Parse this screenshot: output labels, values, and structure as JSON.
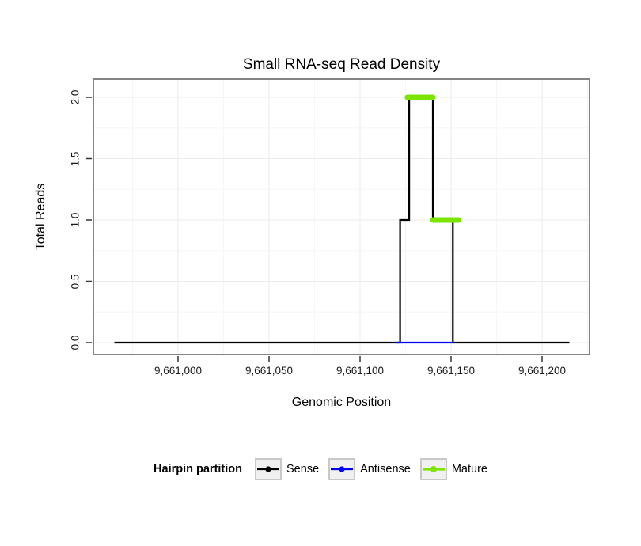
{
  "title": "Small RNA-seq Read Density",
  "axes": {
    "x_label": "Genomic Position",
    "y_label": "Total Reads",
    "x_ticks": [
      {
        "value": 9661000,
        "label": "9,661,000"
      },
      {
        "value": 9661050,
        "label": "9,661,050"
      },
      {
        "value": 9661100,
        "label": "9,661,100"
      },
      {
        "value": 9661150,
        "label": "9,661,150"
      },
      {
        "value": 9661200,
        "label": "9,661,200"
      }
    ],
    "y_ticks": [
      {
        "value": 2.0,
        "label": "2.0"
      },
      {
        "value": 1.5,
        "label": "1.5"
      },
      {
        "value": 1.0,
        "label": "1.0"
      },
      {
        "value": 0.5,
        "label": "0.5"
      },
      {
        "value": 0.0,
        "label": "0.0"
      }
    ]
  },
  "legend": {
    "title": "Hairpin partition",
    "items": [
      {
        "label": "Sense",
        "color": "#000000"
      },
      {
        "label": "Antisense",
        "color": "#0000EE"
      },
      {
        "label": "Mature",
        "color": "#7CE500"
      }
    ]
  },
  "style": {
    "panel_border": "#848484",
    "grid_major": "#ebebeb",
    "grid_minor": "#f6f6f6",
    "tick_color": "#333333"
  },
  "chart_data": {
    "type": "line",
    "title": "Small RNA-seq Read Density",
    "xlabel": "Genomic Position",
    "ylabel": "Total Reads",
    "xlim": [
      9660953,
      9661226
    ],
    "ylim": [
      -0.1,
      2.15
    ],
    "grid": true,
    "legend_position": "bottom",
    "series": [
      {
        "name": "Sense",
        "draw": "step",
        "color": "#000000",
        "width": 2.2,
        "points": [
          [
            9660965,
            0
          ],
          [
            9661122,
            0
          ],
          [
            9661122,
            1
          ],
          [
            9661127,
            1
          ],
          [
            9661127,
            2
          ],
          [
            9661140,
            2
          ],
          [
            9661140,
            1
          ],
          [
            9661151,
            1
          ],
          [
            9661151,
            0
          ],
          [
            9661215,
            0
          ]
        ]
      },
      {
        "name": "Antisense",
        "draw": "line",
        "color": "#0000EE",
        "width": 2.2,
        "points": [
          [
            9661120,
            0
          ],
          [
            9661151,
            0
          ]
        ]
      },
      {
        "name": "Mature",
        "draw": "segments",
        "color": "#7CE500",
        "width": 7,
        "segments": [
          [
            [
              9661126,
              2
            ],
            [
              9661140,
              2
            ]
          ],
          [
            [
              9661140,
              1
            ],
            [
              9661154,
              1
            ]
          ]
        ]
      }
    ]
  }
}
